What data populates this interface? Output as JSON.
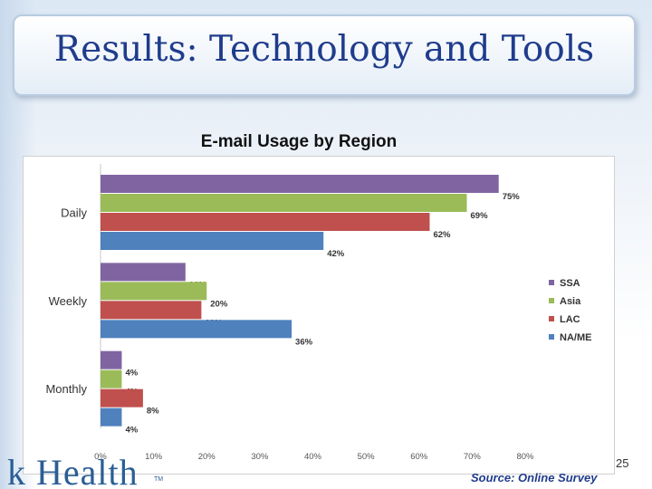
{
  "slide": {
    "title": "Results: Technology and Tools",
    "slide_number": "25",
    "source": "Source: Online Survey",
    "logo_initial": "k",
    "logo_rest": "Health",
    "logo_tm": "TM"
  },
  "chart_data": {
    "type": "bar",
    "orientation": "horizontal",
    "title": "E-mail Usage by Region",
    "categories": [
      "Daily",
      "Weekly",
      "Monthly"
    ],
    "series": [
      {
        "name": "SSA",
        "color": "#8064a2",
        "values": [
          75,
          16,
          4
        ],
        "labels": [
          "75%",
          "16%",
          "4%"
        ]
      },
      {
        "name": "Asia",
        "color": "#9bbb59",
        "values": [
          69,
          20,
          4
        ],
        "labels": [
          "69%",
          "20%",
          "4%"
        ]
      },
      {
        "name": "LAC",
        "color": "#c0504d",
        "values": [
          62,
          19,
          8
        ],
        "labels": [
          "62%",
          "19%",
          "8%"
        ]
      },
      {
        "name": "NA/ME",
        "color": "#4f81bd",
        "values": [
          42,
          36,
          4
        ],
        "labels": [
          "42%",
          "36%",
          "4%"
        ]
      }
    ],
    "xlim": [
      0,
      80
    ],
    "xticks": [
      "0%",
      "10%",
      "20%",
      "30%",
      "40%",
      "50%",
      "60%",
      "70%",
      "80%"
    ],
    "legend": "right",
    "grid": false
  }
}
